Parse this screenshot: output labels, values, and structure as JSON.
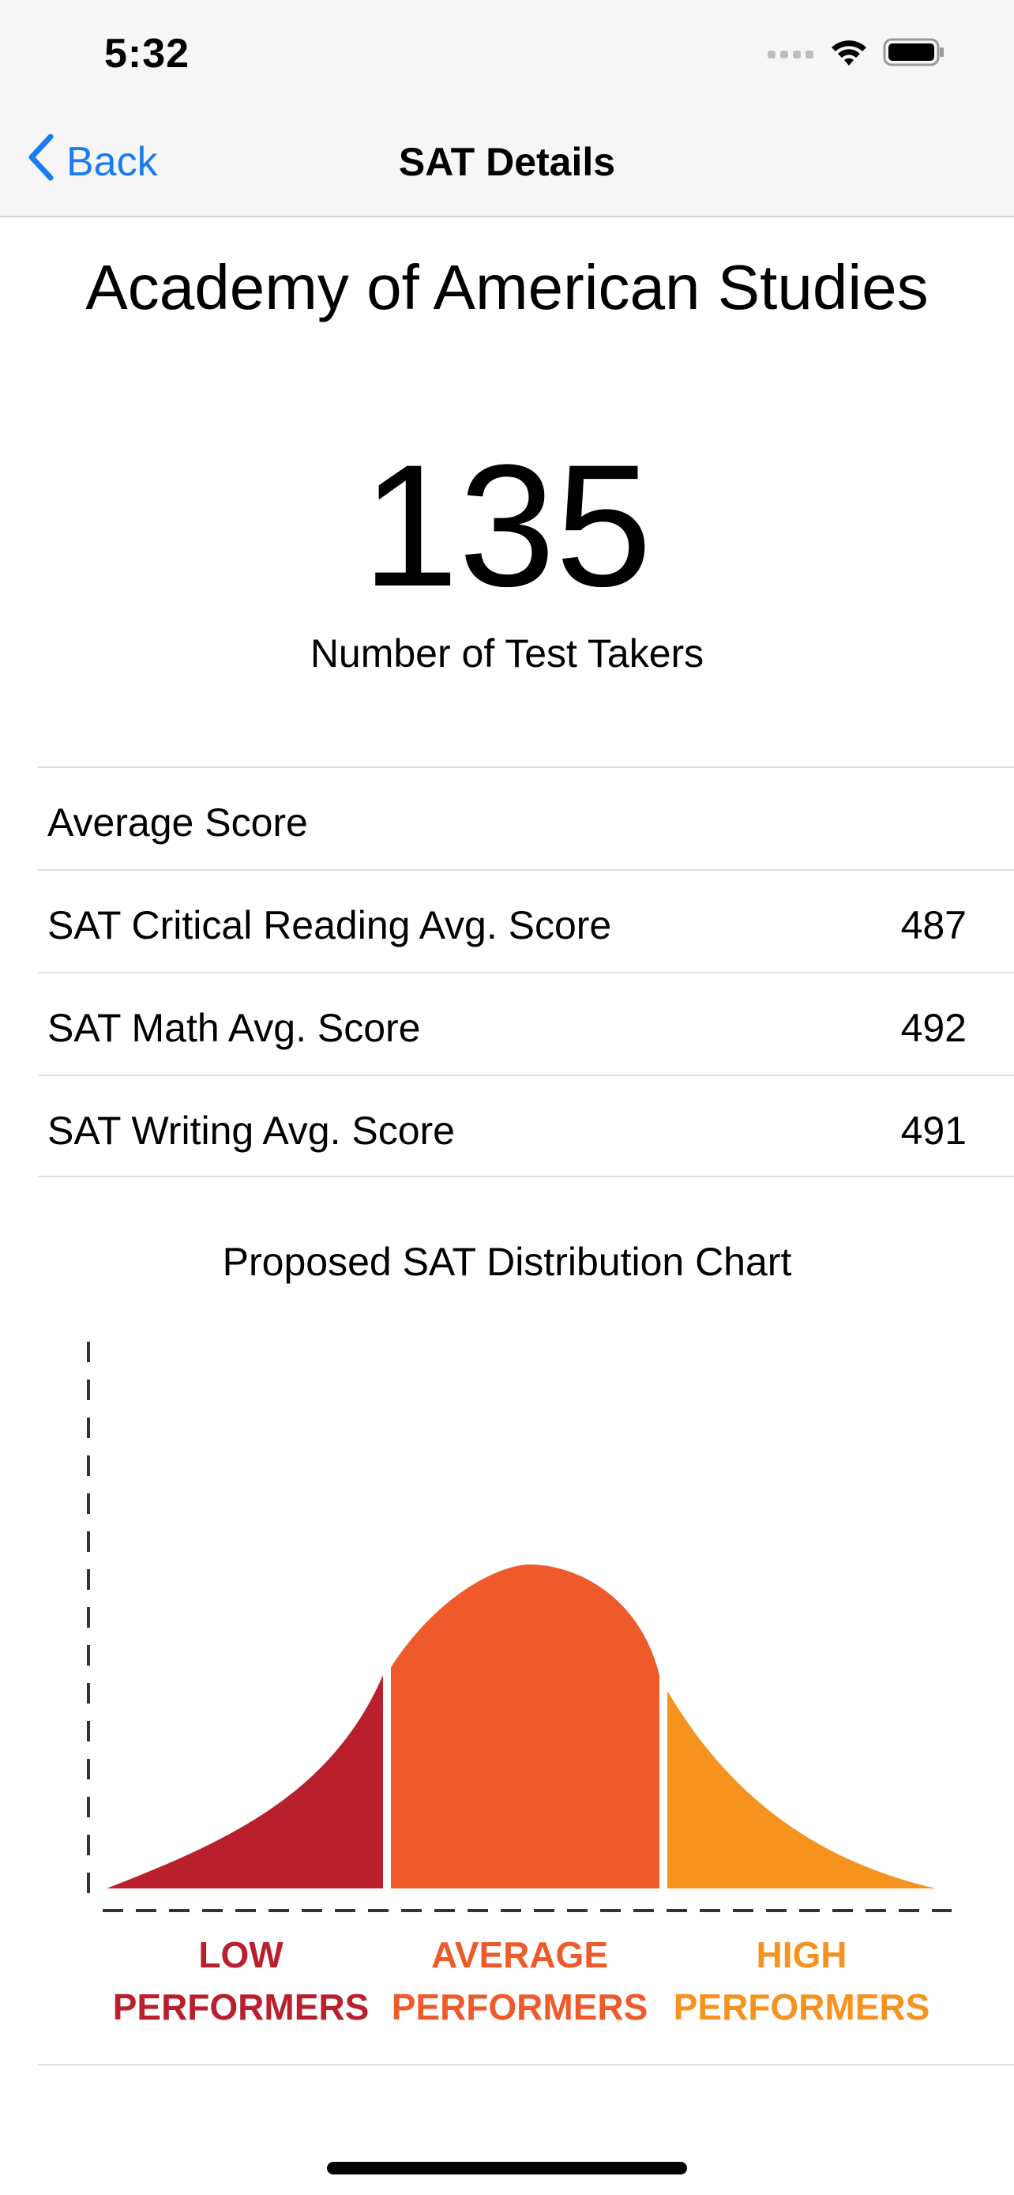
{
  "status_bar": {
    "time": "5:32",
    "icons": [
      "cellular-signal-icon",
      "wifi-icon",
      "battery-icon"
    ]
  },
  "nav": {
    "back_label": "Back",
    "title": "SAT Details",
    "accent_color": "#1a7cf3"
  },
  "school": {
    "name": "Academy of American Studies"
  },
  "test_takers": {
    "count": "135",
    "label": "Number of Test Takers"
  },
  "scores": {
    "header": "Average Score",
    "rows": [
      {
        "label": "SAT Critical Reading Avg. Score",
        "value": "487"
      },
      {
        "label": "SAT Math Avg. Score",
        "value": "492"
      },
      {
        "label": "SAT Writing Avg. Score",
        "value": "491"
      }
    ]
  },
  "distribution": {
    "title": "Proposed SAT Distribution Chart",
    "segments": [
      {
        "line1": "LOW",
        "line2": "PERFORMERS",
        "color": "#b91f2d"
      },
      {
        "line1": "AVERAGE",
        "line2": "PERFORMERS",
        "color": "#ef5a2a"
      },
      {
        "line1": "HIGH",
        "line2": "PERFORMERS",
        "color": "#f6931f"
      }
    ]
  }
}
